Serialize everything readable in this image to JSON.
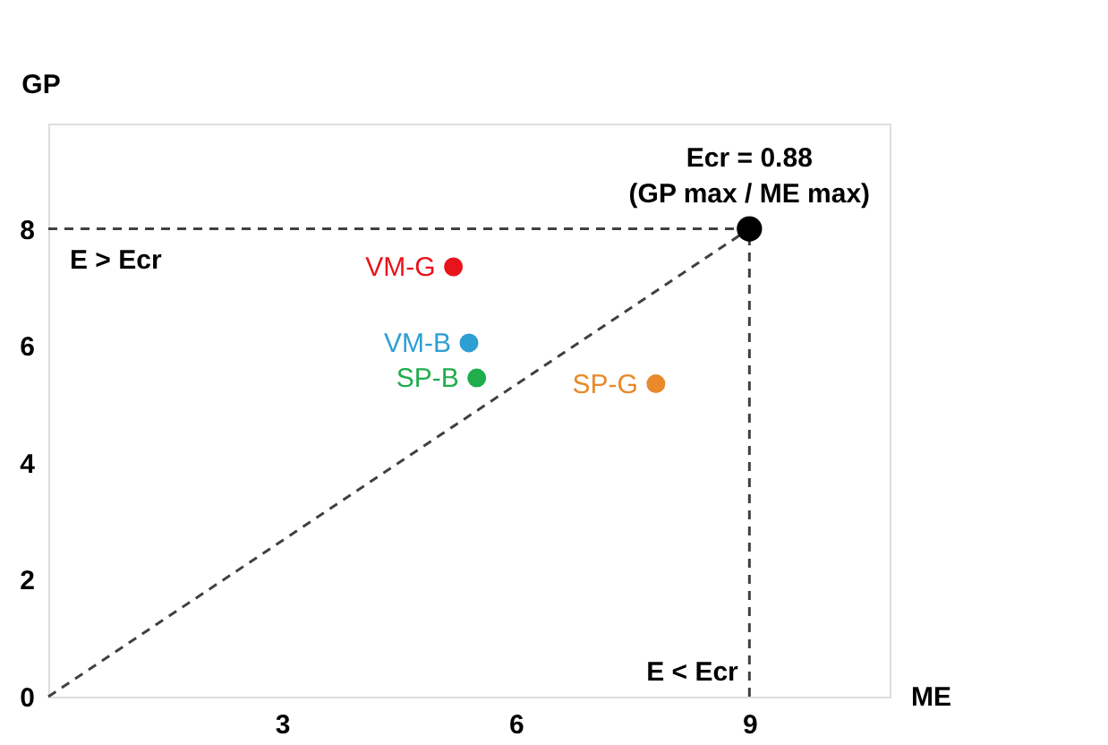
{
  "chart_data": {
    "type": "scatter",
    "xlabel": "ME",
    "ylabel": "GP",
    "xlim": [
      0,
      10.8
    ],
    "ylim": [
      0,
      9.8
    ],
    "xticks": [
      3,
      6,
      9
    ],
    "yticks": [
      0,
      2,
      4,
      6,
      8
    ],
    "grid": false,
    "marker": "circle",
    "series": [
      {
        "type": "line",
        "marker": "none",
        "line_style": "dashed",
        "color": "#404040",
        "x": [
          0,
          9
        ],
        "values": [
          0,
          8
        ]
      },
      {
        "type": "line",
        "marker": "none",
        "line_style": "dashed",
        "color": "#404040",
        "x": [
          0,
          9
        ],
        "values": [
          8,
          8
        ]
      },
      {
        "type": "line",
        "marker": "none",
        "line_style": "dashed",
        "color": "#404040",
        "x": [
          9,
          9
        ],
        "values": [
          0,
          8
        ]
      },
      {
        "type": "scatter",
        "color": "#000000",
        "x": [
          9
        ],
        "values": [
          8
        ]
      },
      {
        "name": "VM-G",
        "color": "#e8141c",
        "x": [
          5.2
        ],
        "values": [
          7.35
        ]
      },
      {
        "name": "VM-B",
        "color": "#2e9fd4",
        "x": [
          5.4
        ],
        "values": [
          6.05
        ]
      },
      {
        "name": "SP-B",
        "color": "#1fae4b",
        "x": [
          5.5
        ],
        "values": [
          5.45
        ]
      },
      {
        "name": "SP-G",
        "color": "#e8892a",
        "x": [
          7.8
        ],
        "values": [
          5.35
        ]
      }
    ],
    "annotations": [
      {
        "text": "Ecr = 0.88\n(GP max / ME max)",
        "x": 9,
        "y": 8
      },
      "E > Ecr",
      "E < Ecr"
    ]
  }
}
